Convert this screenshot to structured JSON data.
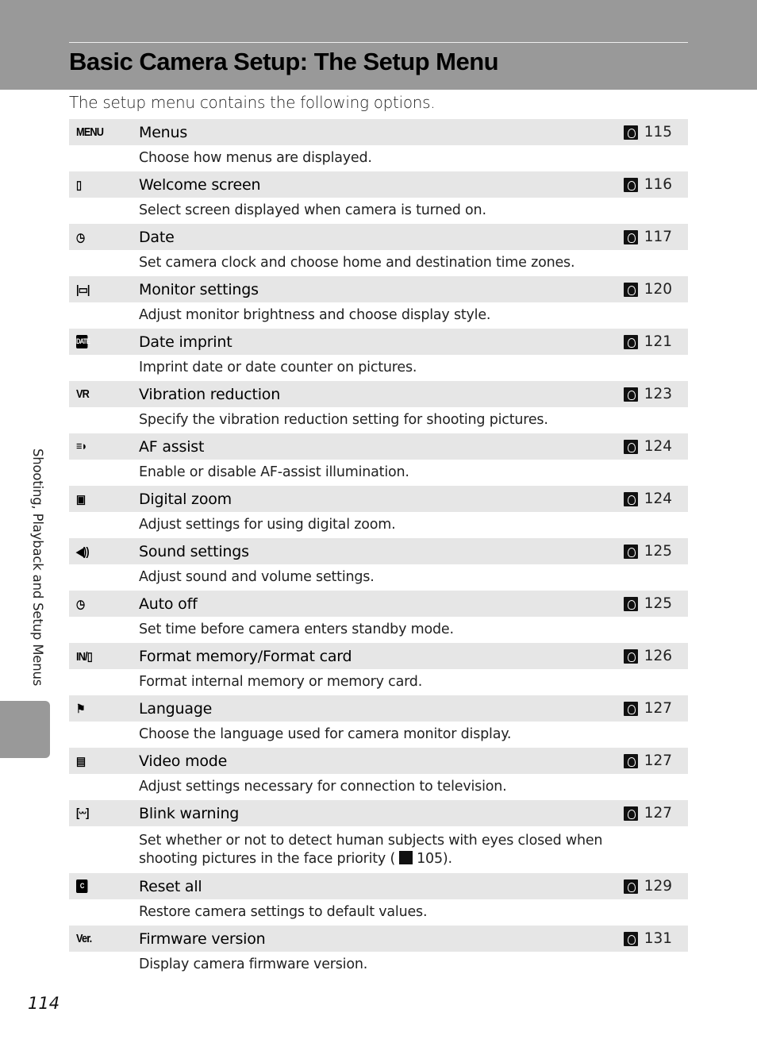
{
  "header": {
    "title": "Basic Camera Setup: The Setup Menu",
    "intro": "The setup menu contains the following options."
  },
  "rows": [
    {
      "icon": "menus-icon",
      "glyph": "MENU",
      "name": "Menus",
      "page": "115",
      "desc": "Choose how menus are displayed."
    },
    {
      "icon": "welcome-screen-icon",
      "glyph": "▯",
      "name": "Welcome screen",
      "page": "116",
      "desc": "Select screen displayed when camera is turned on."
    },
    {
      "icon": "clock-icon",
      "glyph": "◷",
      "name": "Date",
      "page": "117",
      "desc": "Set camera clock and choose home and destination time zones."
    },
    {
      "icon": "monitor-icon",
      "glyph": "|▭|",
      "name": "Monitor settings",
      "page": "120",
      "desc": "Adjust monitor brightness and choose display style."
    },
    {
      "icon": "date-imprint-icon",
      "glyph": "DATE",
      "name": "Date imprint",
      "page": "121",
      "desc": "Imprint date or date counter on pictures."
    },
    {
      "icon": "vr-icon",
      "glyph": "VR",
      "name": "Vibration reduction",
      "page": "123",
      "desc": "Specify the vibration reduction setting for shooting pictures."
    },
    {
      "icon": "af-assist-icon",
      "glyph": "≡◗",
      "name": "AF assist",
      "page": "124",
      "desc": "Enable or disable AF-assist illumination."
    },
    {
      "icon": "digital-zoom-icon",
      "glyph": "▣",
      "name": "Digital zoom",
      "page": "124",
      "desc": "Adjust settings for using digital zoom."
    },
    {
      "icon": "speaker-icon",
      "glyph": "◀))",
      "name": "Sound settings",
      "page": "125",
      "desc": "Adjust sound and volume settings."
    },
    {
      "icon": "auto-off-icon",
      "glyph": "◷",
      "name": "Auto off",
      "page": "125",
      "desc": "Set time before camera enters standby mode."
    },
    {
      "icon": "format-memory-card-icon",
      "glyph": "IN/▯",
      "name": "Format memory/Format card",
      "page": "126",
      "desc": "Format internal memory or memory card."
    },
    {
      "icon": "language-icon",
      "glyph": "⚑",
      "name": "Language",
      "page": "127",
      "desc": "Choose the language used for camera monitor display."
    },
    {
      "icon": "video-mode-icon",
      "glyph": "▤",
      "name": "Video mode",
      "page": "127",
      "desc": "Adjust settings necessary for connection to television."
    },
    {
      "icon": "blink-warning-icon",
      "glyph": "[ᵕᵕ]",
      "name": "Blink warning",
      "page": "127",
      "desc": "Set whether or not to detect human subjects with eyes closed when shooting pictures in the face priority (",
      "desc_ref": "105).",
      "tall": true
    },
    {
      "icon": "reset-icon",
      "glyph": "C",
      "name": "Reset all",
      "page": "129",
      "desc": "Restore camera settings to default values."
    },
    {
      "icon": "firmware-icon",
      "glyph": "Ver.",
      "name": "Firmware version",
      "page": "131",
      "desc": "Display camera firmware version."
    }
  ],
  "side_tab": "Shooting, Playback and Setup Menus",
  "page_number": "114"
}
